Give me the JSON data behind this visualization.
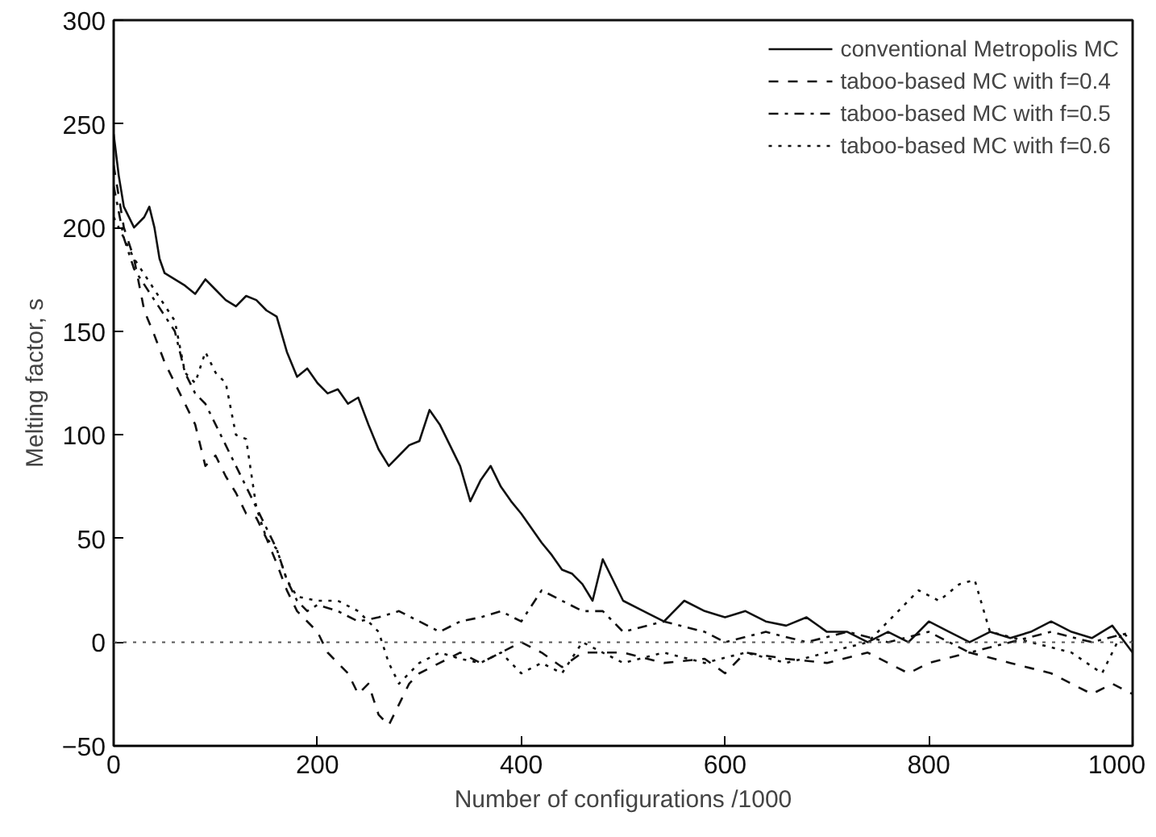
{
  "chart_data": {
    "type": "line",
    "xlabel": "Number of configurations /1000",
    "ylabel": "Melting factor, s",
    "xlim": [
      0,
      1000
    ],
    "ylim": [
      -50,
      300
    ],
    "xticks": [
      0,
      200,
      400,
      600,
      800,
      1000
    ],
    "yticks": [
      -50,
      0,
      50,
      100,
      150,
      200,
      250,
      300
    ],
    "grid": false,
    "legend": "top right",
    "marker": "none",
    "ref_lines": [
      {
        "axis": "y",
        "value": 0,
        "line_style": "dotted",
        "color": "#555555"
      }
    ],
    "series": [
      {
        "name": "conventional Metropolis MC",
        "color": "#111111",
        "line_style": "solid",
        "x": [
          0,
          5,
          10,
          20,
          30,
          35,
          40,
          45,
          50,
          60,
          70,
          80,
          90,
          100,
          110,
          120,
          130,
          140,
          150,
          160,
          170,
          180,
          190,
          200,
          210,
          220,
          230,
          240,
          250,
          260,
          270,
          280,
          290,
          300,
          310,
          320,
          330,
          340,
          350,
          360,
          370,
          380,
          390,
          400,
          410,
          420,
          430,
          440,
          450,
          460,
          470,
          475,
          480,
          490,
          500,
          520,
          540,
          560,
          580,
          600,
          620,
          640,
          660,
          680,
          700,
          720,
          740,
          760,
          780,
          800,
          820,
          840,
          860,
          880,
          900,
          920,
          940,
          960,
          980,
          1000
        ],
        "values": [
          245,
          225,
          210,
          200,
          205,
          210,
          200,
          185,
          178,
          175,
          172,
          168,
          175,
          170,
          165,
          162,
          167,
          165,
          160,
          157,
          140,
          128,
          132,
          125,
          120,
          122,
          115,
          118,
          105,
          93,
          85,
          90,
          95,
          97,
          112,
          105,
          95,
          85,
          68,
          78,
          85,
          75,
          68,
          62,
          55,
          48,
          42,
          35,
          33,
          28,
          20,
          30,
          40,
          30,
          20,
          15,
          10,
          20,
          15,
          12,
          15,
          10,
          8,
          12,
          5,
          5,
          0,
          5,
          0,
          10,
          5,
          0,
          5,
          2,
          5,
          10,
          5,
          2,
          8,
          -5
        ]
      },
      {
        "name": "taboo-based MC with f=0.4",
        "color": "#111111",
        "line_style": "dashed",
        "x": [
          0,
          10,
          20,
          30,
          40,
          50,
          60,
          70,
          80,
          90,
          100,
          110,
          120,
          130,
          140,
          150,
          160,
          170,
          180,
          190,
          200,
          210,
          220,
          230,
          240,
          250,
          260,
          270,
          280,
          290,
          300,
          320,
          340,
          360,
          380,
          400,
          420,
          440,
          460,
          500,
          540,
          580,
          600,
          620,
          660,
          700,
          740,
          780,
          800,
          840,
          880,
          920,
          960,
          980,
          1000
        ],
        "values": [
          230,
          200,
          185,
          160,
          148,
          135,
          125,
          115,
          105,
          85,
          90,
          80,
          72,
          62,
          60,
          50,
          38,
          25,
          15,
          10,
          5,
          -5,
          -10,
          -15,
          -25,
          -20,
          -35,
          -40,
          -30,
          -20,
          -15,
          -10,
          -5,
          -10,
          -5,
          0,
          -5,
          -12,
          -5,
          -5,
          -10,
          -8,
          -15,
          -5,
          -8,
          -10,
          -5,
          -15,
          -10,
          -5,
          -10,
          -15,
          -25,
          -20,
          -25
        ]
      },
      {
        "name": "taboo-based MC with f=0.5",
        "color": "#111111",
        "line_style": "dashdot",
        "x": [
          0,
          10,
          20,
          40,
          60,
          70,
          80,
          90,
          100,
          110,
          120,
          130,
          140,
          150,
          160,
          170,
          180,
          190,
          200,
          220,
          240,
          260,
          280,
          300,
          320,
          340,
          360,
          380,
          400,
          420,
          440,
          460,
          480,
          500,
          540,
          580,
          600,
          640,
          680,
          720,
          760,
          800,
          840,
          880,
          920,
          960,
          1000
        ],
        "values": [
          220,
          195,
          180,
          165,
          150,
          130,
          120,
          115,
          105,
          95,
          85,
          75,
          65,
          55,
          45,
          30,
          20,
          15,
          18,
          15,
          10,
          12,
          15,
          10,
          5,
          10,
          12,
          15,
          10,
          25,
          20,
          15,
          15,
          5,
          10,
          5,
          0,
          5,
          0,
          5,
          0,
          5,
          -5,
          0,
          5,
          0,
          5
        ]
      },
      {
        "name": "taboo-based MC with f=0.6",
        "color": "#111111",
        "line_style": "dotted",
        "x": [
          0,
          10,
          20,
          40,
          60,
          70,
          80,
          90,
          100,
          110,
          120,
          130,
          140,
          150,
          160,
          170,
          180,
          200,
          220,
          240,
          260,
          270,
          280,
          300,
          320,
          340,
          360,
          380,
          400,
          420,
          440,
          460,
          480,
          500,
          540,
          580,
          620,
          660,
          700,
          740,
          770,
          790,
          810,
          830,
          845,
          860,
          900,
          940,
          970,
          990,
          1000
        ],
        "values": [
          205,
          195,
          185,
          170,
          155,
          130,
          125,
          140,
          130,
          125,
          100,
          98,
          65,
          50,
          45,
          30,
          22,
          20,
          20,
          15,
          5,
          -10,
          -20,
          -10,
          -5,
          -8,
          -10,
          -5,
          -15,
          -10,
          -15,
          0,
          -5,
          -10,
          -5,
          -10,
          -5,
          -10,
          -5,
          0,
          15,
          25,
          20,
          28,
          30,
          5,
          0,
          -5,
          -15,
          5,
          0
        ]
      }
    ]
  }
}
